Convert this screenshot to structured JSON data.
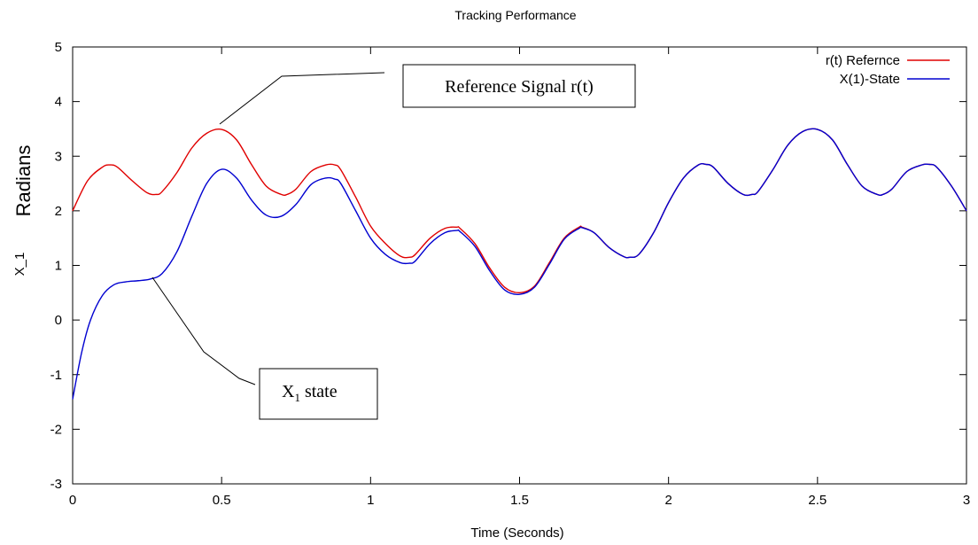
{
  "chart_data": {
    "type": "line",
    "title": "Tracking Performance",
    "xlabel": "Time (Seconds)",
    "ylabel_outer": "Radians",
    "ylabel_inner": "X_1",
    "xlim": [
      0,
      3
    ],
    "ylim": [
      -3,
      5
    ],
    "grid": false,
    "legend_placement": "top-right",
    "x_ticks": [
      0,
      0.5,
      1,
      1.5,
      2,
      2.5,
      3
    ],
    "x_tick_labels": [
      "0",
      "0.5",
      "1",
      "1.5",
      "2",
      "2.5",
      "3"
    ],
    "y_ticks": [
      -3,
      -2,
      -1,
      0,
      1,
      2,
      3,
      4,
      5
    ],
    "y_tick_labels": [
      "-3",
      "-2",
      "-1",
      "0",
      "1",
      "2",
      "3",
      "4",
      "5"
    ],
    "series": [
      {
        "name": "r(t) Refernce",
        "color": "#e00000",
        "x": [
          0,
          0.05,
          0.1,
          0.125,
          0.15,
          0.2,
          0.25,
          0.28,
          0.3,
          0.35,
          0.4,
          0.45,
          0.5,
          0.55,
          0.6,
          0.65,
          0.7,
          0.72,
          0.75,
          0.8,
          0.85,
          0.88,
          0.9,
          0.95,
          1.0,
          1.05,
          1.1,
          1.13,
          1.15,
          1.2,
          1.25,
          1.29,
          1.3,
          1.35,
          1.4,
          1.45,
          1.5,
          1.55,
          1.6,
          1.65,
          1.7,
          1.71,
          1.75,
          1.8,
          1.85,
          1.87,
          1.9,
          1.95,
          2.0,
          2.05,
          2.1,
          2.125,
          2.15,
          2.2,
          2.25,
          2.28,
          2.3,
          2.35,
          2.4,
          2.45,
          2.5,
          2.55,
          2.6,
          2.65,
          2.7,
          2.72,
          2.75,
          2.8,
          2.85,
          2.875,
          2.9,
          2.95,
          3.0
        ],
        "y": [
          2.0,
          2.55,
          2.8,
          2.84,
          2.8,
          2.55,
          2.33,
          2.3,
          2.35,
          2.7,
          3.15,
          3.42,
          3.49,
          3.3,
          2.85,
          2.45,
          2.3,
          2.3,
          2.4,
          2.72,
          2.84,
          2.84,
          2.75,
          2.25,
          1.72,
          1.4,
          1.17,
          1.15,
          1.2,
          1.5,
          1.68,
          1.7,
          1.68,
          1.4,
          0.95,
          0.6,
          0.5,
          0.62,
          1.05,
          1.5,
          1.7,
          1.7,
          1.6,
          1.33,
          1.16,
          1.15,
          1.2,
          1.6,
          2.15,
          2.6,
          2.84,
          2.85,
          2.8,
          2.5,
          2.3,
          2.3,
          2.35,
          2.75,
          3.2,
          3.45,
          3.49,
          3.3,
          2.85,
          2.45,
          2.3,
          2.3,
          2.4,
          2.72,
          2.84,
          2.85,
          2.8,
          2.45,
          2.0
        ]
      },
      {
        "name": "X(1)-State",
        "color": "#0000d0",
        "x": [
          0,
          0.03,
          0.06,
          0.1,
          0.14,
          0.18,
          0.22,
          0.26,
          0.3,
          0.35,
          0.4,
          0.45,
          0.5,
          0.55,
          0.6,
          0.65,
          0.7,
          0.75,
          0.8,
          0.85,
          0.88,
          0.9,
          0.95,
          1.0,
          1.05,
          1.1,
          1.13,
          1.15,
          1.2,
          1.25,
          1.29,
          1.3,
          1.35,
          1.4,
          1.45,
          1.5,
          1.55,
          1.6,
          1.65,
          1.7,
          1.71,
          1.75,
          1.8,
          1.85,
          1.87,
          1.9,
          1.95,
          2.0,
          2.05,
          2.1,
          2.125,
          2.15,
          2.2,
          2.25,
          2.28,
          2.3,
          2.35,
          2.4,
          2.45,
          2.5,
          2.55,
          2.6,
          2.65,
          2.7,
          2.72,
          2.75,
          2.8,
          2.85,
          2.875,
          2.9,
          2.95,
          3.0
        ],
        "y": [
          -1.45,
          -0.6,
          0.0,
          0.45,
          0.65,
          0.7,
          0.72,
          0.75,
          0.85,
          1.25,
          1.9,
          2.5,
          2.76,
          2.6,
          2.2,
          1.92,
          1.9,
          2.12,
          2.48,
          2.6,
          2.58,
          2.5,
          2.0,
          1.5,
          1.2,
          1.05,
          1.04,
          1.08,
          1.4,
          1.6,
          1.64,
          1.62,
          1.35,
          0.9,
          0.55,
          0.47,
          0.6,
          1.02,
          1.48,
          1.68,
          1.69,
          1.6,
          1.33,
          1.16,
          1.15,
          1.2,
          1.6,
          2.15,
          2.6,
          2.84,
          2.85,
          2.8,
          2.5,
          2.3,
          2.3,
          2.35,
          2.75,
          3.2,
          3.45,
          3.49,
          3.3,
          2.85,
          2.45,
          2.3,
          2.3,
          2.4,
          2.72,
          2.84,
          2.85,
          2.8,
          2.45,
          2.0
        ]
      }
    ],
    "annotations": [
      {
        "id": "ref",
        "text_main": "Reference Signal r(t)",
        "text_sub": "",
        "text_after": ""
      },
      {
        "id": "state",
        "text_main": "X",
        "text_sub": "1",
        "text_after": " state"
      }
    ]
  }
}
